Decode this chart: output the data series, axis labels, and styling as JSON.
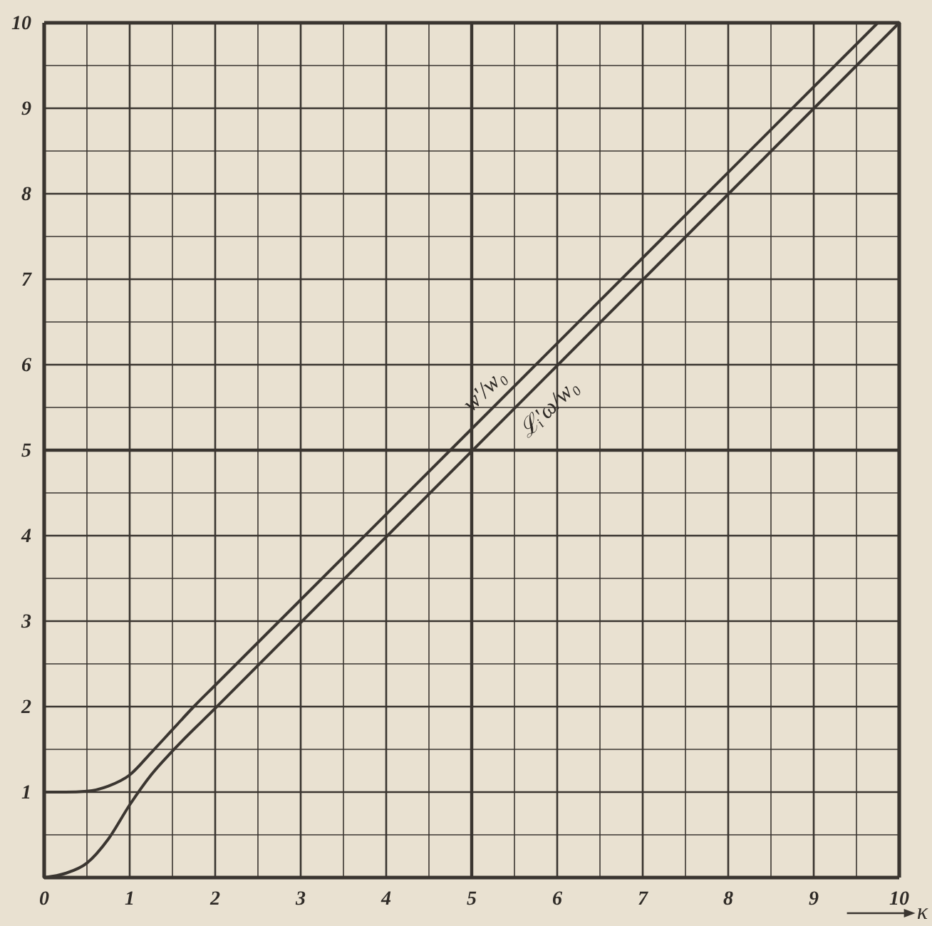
{
  "chart_data": {
    "type": "line",
    "xlabel": "κ",
    "xlim": [
      0,
      10
    ],
    "ylim": [
      0,
      10
    ],
    "xticks": [
      0,
      {
        "value": 0.5,
        "label": null
      },
      1,
      {
        "value": 1.5,
        "label": null
      },
      2,
      {
        "value": 2.5,
        "label": null
      },
      3,
      {
        "value": 3.5,
        "label": null
      },
      4,
      {
        "value": 4.5,
        "label": null
      },
      5,
      {
        "value": 5.5,
        "label": null
      },
      6,
      {
        "value": 6.5,
        "label": null
      },
      7,
      {
        "value": 7.5,
        "label": null
      },
      8,
      {
        "value": 8.5,
        "label": null
      },
      9,
      {
        "value": 9.5,
        "label": null
      },
      10
    ],
    "yticks": [
      {
        "value": 0,
        "label": null
      },
      {
        "value": 0.5,
        "label": null
      },
      1,
      {
        "value": 1.5,
        "label": null
      },
      2,
      {
        "value": 2.5,
        "label": null
      },
      3,
      {
        "value": 3.5,
        "label": null
      },
      4,
      {
        "value": 4.5,
        "label": null
      },
      5,
      {
        "value": 5.5,
        "label": null
      },
      6,
      {
        "value": 6.5,
        "label": null
      },
      7,
      {
        "value": 7.5,
        "label": null
      },
      8,
      {
        "value": 8.5,
        "label": null
      },
      9,
      {
        "value": 9.5,
        "label": null
      },
      10
    ],
    "grid": true,
    "series": [
      {
        "name": "w'/w₀",
        "color": "#3b3631",
        "x": [
          0,
          0.25,
          0.5,
          0.75,
          1,
          1.25,
          1.5,
          1.75,
          2,
          3,
          5,
          7,
          9.75
        ],
        "values": [
          1,
          1,
          1.01,
          1.07,
          1.2,
          1.46,
          1.73,
          2,
          2.25,
          3.25,
          5.25,
          7.25,
          10
        ]
      },
      {
        "name": "ℒᵢ'ω/w₀",
        "color": "#3b3631",
        "x": [
          0,
          0.25,
          0.5,
          0.75,
          1,
          1.25,
          1.5,
          2,
          10
        ],
        "values": [
          0,
          0.05,
          0.17,
          0.45,
          0.85,
          1.2,
          1.48,
          1.98,
          10
        ]
      }
    ]
  }
}
